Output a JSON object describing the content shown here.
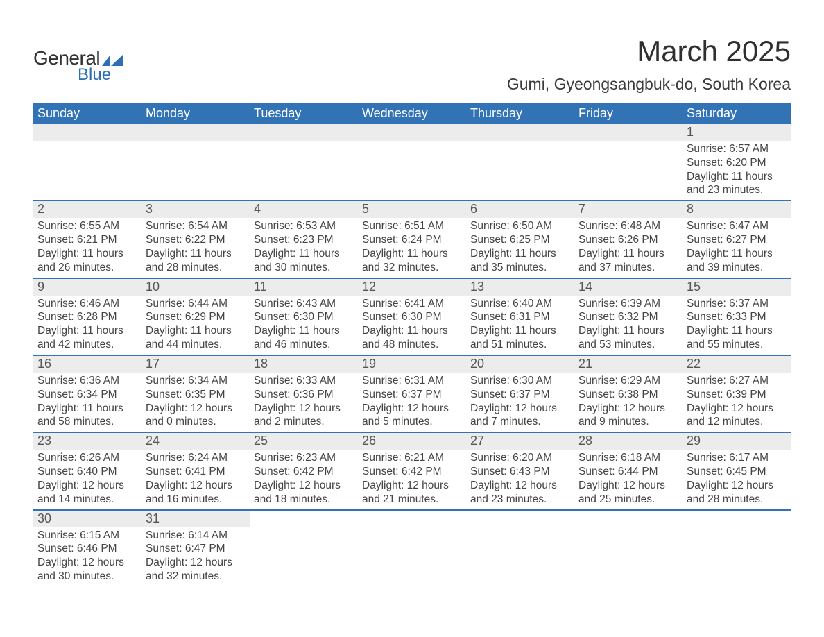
{
  "colors": {
    "header_bg": "#3173b5",
    "header_text": "#ffffff",
    "daynum_bg": "#ececec",
    "row_sep": "#3173b5",
    "body_text": "#444444",
    "logo_blue": "#2d6fb1",
    "logo_dark": "#323232"
  },
  "logo": {
    "line1": "General",
    "line2": "Blue"
  },
  "title": "March 2025",
  "location": "Gumi, Gyeongsangbuk-do, South Korea",
  "weekdays": [
    "Sunday",
    "Monday",
    "Tuesday",
    "Wednesday",
    "Thursday",
    "Friday",
    "Saturday"
  ],
  "weeks": [
    [
      {
        "empty": true
      },
      {
        "empty": true
      },
      {
        "empty": true
      },
      {
        "empty": true
      },
      {
        "empty": true
      },
      {
        "empty": true
      },
      {
        "day": "1",
        "sunrise": "Sunrise: 6:57 AM",
        "sunset": "Sunset: 6:20 PM",
        "dl1": "Daylight: 11 hours",
        "dl2": "and 23 minutes."
      }
    ],
    [
      {
        "day": "2",
        "sunrise": "Sunrise: 6:55 AM",
        "sunset": "Sunset: 6:21 PM",
        "dl1": "Daylight: 11 hours",
        "dl2": "and 26 minutes."
      },
      {
        "day": "3",
        "sunrise": "Sunrise: 6:54 AM",
        "sunset": "Sunset: 6:22 PM",
        "dl1": "Daylight: 11 hours",
        "dl2": "and 28 minutes."
      },
      {
        "day": "4",
        "sunrise": "Sunrise: 6:53 AM",
        "sunset": "Sunset: 6:23 PM",
        "dl1": "Daylight: 11 hours",
        "dl2": "and 30 minutes."
      },
      {
        "day": "5",
        "sunrise": "Sunrise: 6:51 AM",
        "sunset": "Sunset: 6:24 PM",
        "dl1": "Daylight: 11 hours",
        "dl2": "and 32 minutes."
      },
      {
        "day": "6",
        "sunrise": "Sunrise: 6:50 AM",
        "sunset": "Sunset: 6:25 PM",
        "dl1": "Daylight: 11 hours",
        "dl2": "and 35 minutes."
      },
      {
        "day": "7",
        "sunrise": "Sunrise: 6:48 AM",
        "sunset": "Sunset: 6:26 PM",
        "dl1": "Daylight: 11 hours",
        "dl2": "and 37 minutes."
      },
      {
        "day": "8",
        "sunrise": "Sunrise: 6:47 AM",
        "sunset": "Sunset: 6:27 PM",
        "dl1": "Daylight: 11 hours",
        "dl2": "and 39 minutes."
      }
    ],
    [
      {
        "day": "9",
        "sunrise": "Sunrise: 6:46 AM",
        "sunset": "Sunset: 6:28 PM",
        "dl1": "Daylight: 11 hours",
        "dl2": "and 42 minutes."
      },
      {
        "day": "10",
        "sunrise": "Sunrise: 6:44 AM",
        "sunset": "Sunset: 6:29 PM",
        "dl1": "Daylight: 11 hours",
        "dl2": "and 44 minutes."
      },
      {
        "day": "11",
        "sunrise": "Sunrise: 6:43 AM",
        "sunset": "Sunset: 6:30 PM",
        "dl1": "Daylight: 11 hours",
        "dl2": "and 46 minutes."
      },
      {
        "day": "12",
        "sunrise": "Sunrise: 6:41 AM",
        "sunset": "Sunset: 6:30 PM",
        "dl1": "Daylight: 11 hours",
        "dl2": "and 48 minutes."
      },
      {
        "day": "13",
        "sunrise": "Sunrise: 6:40 AM",
        "sunset": "Sunset: 6:31 PM",
        "dl1": "Daylight: 11 hours",
        "dl2": "and 51 minutes."
      },
      {
        "day": "14",
        "sunrise": "Sunrise: 6:39 AM",
        "sunset": "Sunset: 6:32 PM",
        "dl1": "Daylight: 11 hours",
        "dl2": "and 53 minutes."
      },
      {
        "day": "15",
        "sunrise": "Sunrise: 6:37 AM",
        "sunset": "Sunset: 6:33 PM",
        "dl1": "Daylight: 11 hours",
        "dl2": "and 55 minutes."
      }
    ],
    [
      {
        "day": "16",
        "sunrise": "Sunrise: 6:36 AM",
        "sunset": "Sunset: 6:34 PM",
        "dl1": "Daylight: 11 hours",
        "dl2": "and 58 minutes."
      },
      {
        "day": "17",
        "sunrise": "Sunrise: 6:34 AM",
        "sunset": "Sunset: 6:35 PM",
        "dl1": "Daylight: 12 hours",
        "dl2": "and 0 minutes."
      },
      {
        "day": "18",
        "sunrise": "Sunrise: 6:33 AM",
        "sunset": "Sunset: 6:36 PM",
        "dl1": "Daylight: 12 hours",
        "dl2": "and 2 minutes."
      },
      {
        "day": "19",
        "sunrise": "Sunrise: 6:31 AM",
        "sunset": "Sunset: 6:37 PM",
        "dl1": "Daylight: 12 hours",
        "dl2": "and 5 minutes."
      },
      {
        "day": "20",
        "sunrise": "Sunrise: 6:30 AM",
        "sunset": "Sunset: 6:37 PM",
        "dl1": "Daylight: 12 hours",
        "dl2": "and 7 minutes."
      },
      {
        "day": "21",
        "sunrise": "Sunrise: 6:29 AM",
        "sunset": "Sunset: 6:38 PM",
        "dl1": "Daylight: 12 hours",
        "dl2": "and 9 minutes."
      },
      {
        "day": "22",
        "sunrise": "Sunrise: 6:27 AM",
        "sunset": "Sunset: 6:39 PM",
        "dl1": "Daylight: 12 hours",
        "dl2": "and 12 minutes."
      }
    ],
    [
      {
        "day": "23",
        "sunrise": "Sunrise: 6:26 AM",
        "sunset": "Sunset: 6:40 PM",
        "dl1": "Daylight: 12 hours",
        "dl2": "and 14 minutes."
      },
      {
        "day": "24",
        "sunrise": "Sunrise: 6:24 AM",
        "sunset": "Sunset: 6:41 PM",
        "dl1": "Daylight: 12 hours",
        "dl2": "and 16 minutes."
      },
      {
        "day": "25",
        "sunrise": "Sunrise: 6:23 AM",
        "sunset": "Sunset: 6:42 PM",
        "dl1": "Daylight: 12 hours",
        "dl2": "and 18 minutes."
      },
      {
        "day": "26",
        "sunrise": "Sunrise: 6:21 AM",
        "sunset": "Sunset: 6:42 PM",
        "dl1": "Daylight: 12 hours",
        "dl2": "and 21 minutes."
      },
      {
        "day": "27",
        "sunrise": "Sunrise: 6:20 AM",
        "sunset": "Sunset: 6:43 PM",
        "dl1": "Daylight: 12 hours",
        "dl2": "and 23 minutes."
      },
      {
        "day": "28",
        "sunrise": "Sunrise: 6:18 AM",
        "sunset": "Sunset: 6:44 PM",
        "dl1": "Daylight: 12 hours",
        "dl2": "and 25 minutes."
      },
      {
        "day": "29",
        "sunrise": "Sunrise: 6:17 AM",
        "sunset": "Sunset: 6:45 PM",
        "dl1": "Daylight: 12 hours",
        "dl2": "and 28 minutes."
      }
    ],
    [
      {
        "day": "30",
        "sunrise": "Sunrise: 6:15 AM",
        "sunset": "Sunset: 6:46 PM",
        "dl1": "Daylight: 12 hours",
        "dl2": "and 30 minutes."
      },
      {
        "day": "31",
        "sunrise": "Sunrise: 6:14 AM",
        "sunset": "Sunset: 6:47 PM",
        "dl1": "Daylight: 12 hours",
        "dl2": "and 32 minutes."
      },
      {
        "empty": true,
        "nobg": true
      },
      {
        "empty": true,
        "nobg": true
      },
      {
        "empty": true,
        "nobg": true
      },
      {
        "empty": true,
        "nobg": true
      },
      {
        "empty": true,
        "nobg": true
      }
    ]
  ]
}
